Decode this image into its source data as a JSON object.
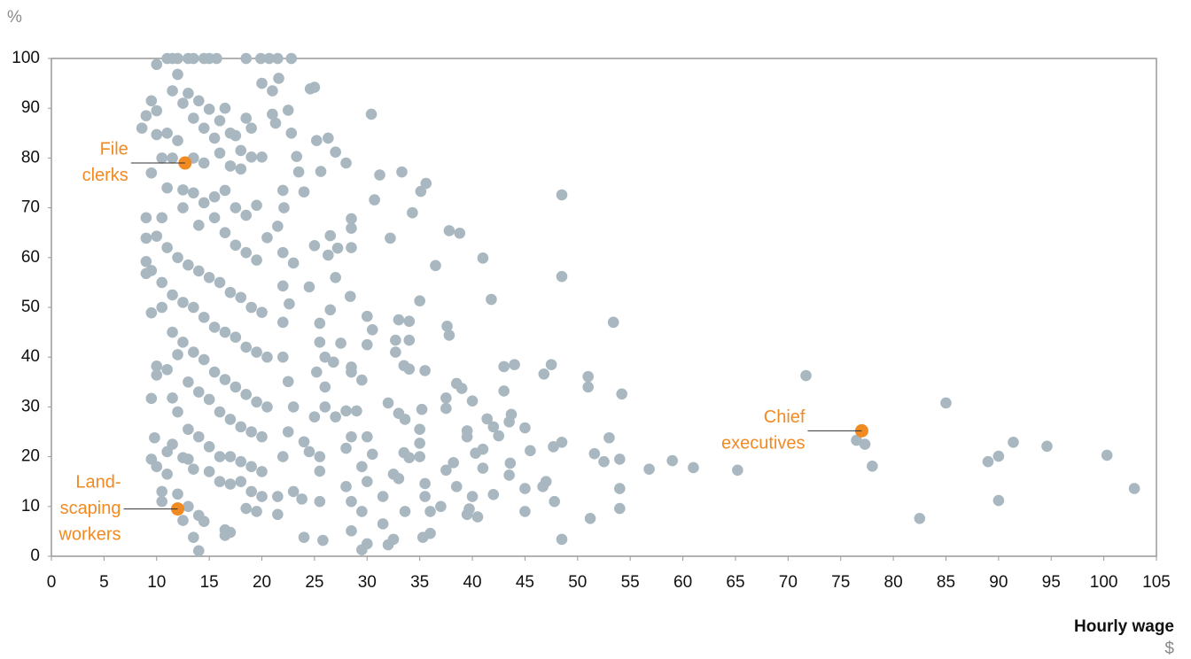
{
  "chart_data": {
    "type": "scatter",
    "y_unit": "%",
    "x_label": "Hourly wage",
    "x_unit": "$",
    "xlim": [
      0,
      105
    ],
    "xticks": [
      0,
      5,
      10,
      15,
      20,
      25,
      30,
      35,
      40,
      45,
      50,
      55,
      60,
      65,
      70,
      75,
      80,
      85,
      90,
      95,
      100,
      105
    ],
    "ylim": [
      0,
      100
    ],
    "yticks": [
      0,
      10,
      20,
      30,
      40,
      50,
      60,
      70,
      80,
      90,
      100
    ],
    "grid": false,
    "series": [
      {
        "color": "#a9b8c0",
        "x": [
          71.7,
          85,
          76.5,
          77.3,
          78,
          82.5,
          89,
          90,
          90,
          91.4,
          94.6,
          100.3,
          102.9,
          65.2,
          61,
          59,
          56.8,
          54,
          54,
          54,
          54.2,
          53.4,
          51,
          51,
          51.6,
          52.5,
          53,
          51.2,
          48.5,
          48.5,
          48.5,
          48.5,
          47.8,
          47.5,
          47.7,
          46.8,
          46.7,
          47,
          45,
          45.5,
          45,
          45,
          44,
          43.7,
          43.5,
          43.6,
          43.5,
          43,
          43,
          42.5,
          42,
          42,
          41.8,
          41.4,
          41,
          41,
          41,
          40.3,
          40.5,
          40,
          40,
          39.7,
          39,
          39.5,
          39.5,
          39.5,
          38.5,
          38.8,
          37.8,
          37.6,
          37.8,
          37.5,
          37.5,
          37.5,
          38.2,
          38.5,
          36.5,
          35.6,
          35.1,
          35,
          34.3,
          34,
          34,
          34,
          35.5,
          35.2,
          35,
          35,
          35,
          34,
          35.5,
          35.5,
          36,
          37,
          36,
          35.3,
          33.3,
          32.2,
          31.2,
          30.4,
          30.7,
          33,
          32.7,
          32.7,
          33.5,
          32,
          33,
          33.6,
          33.5,
          33,
          32.5,
          33.6,
          32.5,
          32,
          31.5,
          31.5,
          30.5,
          30,
          30,
          29.5,
          29,
          30,
          30.5,
          29.5,
          30,
          29.5,
          30,
          29.5,
          28.5,
          28.5,
          28.5,
          28.4,
          28.5,
          28.5,
          28,
          28.5,
          28,
          28,
          28.5,
          28.5,
          28,
          27.5,
          27,
          27.2,
          27,
          26.8,
          27,
          26,
          26,
          26.3,
          26.3,
          26.5,
          26.5,
          25.5,
          25.5,
          26,
          25.2,
          25,
          25.5,
          25.5,
          25.5,
          25.8,
          25,
          24.6,
          25.2,
          25.6,
          25,
          24.5,
          24,
          23.5,
          23.3,
          22.8,
          22.5,
          22.8,
          21.5,
          20.7,
          19.9,
          18.5,
          21.6,
          21,
          20,
          21,
          21.3,
          22,
          22.1,
          21.5,
          22,
          23,
          22.6,
          22,
          22,
          22,
          22.5,
          23,
          22.5,
          22,
          21.5,
          21.5,
          23.8,
          24,
          23,
          24.5,
          24,
          10,
          11,
          11.5,
          12,
          13,
          13.5,
          14.5,
          15,
          15.7,
          12,
          13,
          14,
          15,
          16,
          16.5,
          17,
          17.5,
          18,
          18.5,
          19,
          11.5,
          12.5,
          13.5,
          14.5,
          15.5,
          16,
          17,
          18,
          19,
          20,
          9.5,
          10,
          9,
          8.6,
          10,
          11,
          12,
          13.5,
          10.5,
          11.5,
          14.5,
          9.5,
          11,
          12.5,
          13.5,
          14.5,
          15.5,
          16.5,
          17.5,
          18.5,
          19.5,
          20.5,
          12.5,
          14,
          15.5,
          16.5,
          17.5,
          18.5,
          19.5,
          9,
          10.5,
          10,
          9,
          11,
          12,
          13,
          14,
          15,
          16,
          17,
          18,
          19,
          20,
          9,
          9,
          9.5,
          10.5,
          11.5,
          12.5,
          13.5,
          14.5,
          15.5,
          16.5,
          17.5,
          18.5,
          19.5,
          20.5,
          9.5,
          10.5,
          11.5,
          12.5,
          13.5,
          14.5,
          15.5,
          16.5,
          17.5,
          18.5,
          19.5,
          20.5,
          10,
          10,
          11,
          12,
          13,
          14,
          15,
          16,
          17,
          18,
          19,
          20,
          9.5,
          11.5,
          12,
          13,
          14,
          15,
          16,
          17,
          18,
          19,
          20,
          9.8,
          11,
          11.5,
          12.5,
          13,
          13.5,
          15,
          16,
          17,
          18,
          19,
          20,
          9.5,
          10,
          10.5,
          10.5,
          11,
          12,
          13,
          14,
          14.5,
          16.5,
          16.5,
          17,
          18.5,
          19.5,
          13.5,
          14,
          12.5
        ],
        "values": [
          36.3,
          30.8,
          23.3,
          22.5,
          18.1,
          7.6,
          19,
          20.1,
          11.2,
          22.9,
          22.1,
          20.3,
          13.6,
          17.3,
          17.8,
          19.2,
          17.5,
          19.5,
          13.6,
          9.6,
          32.6,
          47,
          36.1,
          34,
          20.6,
          19,
          23.8,
          7.6,
          72.6,
          56.2,
          22.9,
          3.4,
          11,
          38.5,
          22,
          36.6,
          14,
          15,
          25.8,
          21.2,
          13.6,
          9,
          38.5,
          28.5,
          27,
          18.7,
          16.3,
          38.1,
          33.2,
          24.2,
          12.4,
          26,
          51.6,
          27.6,
          59.9,
          21.5,
          17.7,
          20.7,
          7.9,
          31.2,
          12,
          9.5,
          33.7,
          25.2,
          24,
          8.4,
          34.7,
          64.9,
          65.4,
          46.2,
          44.4,
          31.8,
          29.7,
          17.3,
          18.8,
          14,
          58.4,
          74.9,
          73.3,
          51.3,
          69,
          47.2,
          43.4,
          37.6,
          37.3,
          29.5,
          25.5,
          22.7,
          20,
          19.8,
          14.6,
          12,
          9,
          10,
          4.6,
          3.8,
          77.2,
          63.9,
          76.6,
          88.8,
          71.6,
          47.5,
          43.4,
          41,
          38.3,
          30.8,
          28.7,
          27.5,
          20.8,
          15.6,
          16.5,
          9,
          3.4,
          2.3,
          6.5,
          12,
          45.5,
          48.2,
          42.5,
          35.4,
          29.2,
          24,
          20.5,
          18,
          15,
          9,
          2.5,
          1.3,
          67.8,
          65.9,
          62,
          52.2,
          38,
          37,
          29.2,
          24,
          21.7,
          14,
          11,
          5.1,
          79,
          42.8,
          81.2,
          61.9,
          56,
          39,
          28,
          34,
          30,
          84,
          60.5,
          64.4,
          49.5,
          46.8,
          43,
          40,
          37,
          28,
          20,
          17.1,
          11,
          3.2,
          94.2,
          93.9,
          83.5,
          77.3,
          62.4,
          54.1,
          73.2,
          77.2,
          80.3,
          85,
          89.6,
          100,
          100,
          100,
          100,
          100,
          96,
          93.5,
          95,
          88.8,
          87,
          73.5,
          70,
          66.3,
          61,
          58.9,
          50.7,
          54.3,
          47,
          40,
          35.1,
          30,
          25,
          20,
          12,
          8.4,
          11.5,
          3.8,
          13,
          21,
          23,
          98.8,
          100,
          100,
          100,
          100,
          100,
          100,
          100,
          100,
          96.8,
          93,
          91.5,
          89.8,
          87.5,
          90,
          85,
          84.5,
          81.5,
          88,
          86,
          93.5,
          91,
          88,
          86,
          84,
          81,
          78.4,
          77.8,
          80.2,
          80.2,
          91.5,
          89.5,
          88.5,
          86,
          84.7,
          85,
          83.5,
          80,
          80,
          80,
          79,
          77,
          74,
          73.6,
          73,
          71,
          72.2,
          73.5,
          70,
          68.5,
          70.5,
          64,
          70,
          66.5,
          68,
          65,
          62.5,
          61,
          59.5,
          68,
          68,
          64.3,
          63.9,
          62,
          60,
          58.5,
          57.3,
          56,
          55,
          53,
          52,
          50,
          49,
          59.2,
          56.8,
          57.4,
          55,
          52.5,
          51,
          50,
          48,
          46,
          45,
          44,
          42,
          41,
          40,
          48.9,
          50,
          45,
          43,
          41,
          39.5,
          37,
          35.5,
          34,
          32.5,
          31,
          30,
          38.2,
          36.4,
          37.5,
          40.5,
          35,
          33,
          31.5,
          29,
          27.5,
          26,
          25,
          24,
          31.7,
          31.8,
          29,
          25.5,
          24,
          22,
          20,
          20,
          19,
          18,
          17,
          23.8,
          21,
          22.5,
          19.8,
          19.5,
          17.5,
          17,
          15,
          14.5,
          15,
          13,
          12,
          19.5,
          18,
          13,
          11,
          16.5,
          12.5,
          10,
          8.2,
          7,
          5.3,
          4.2,
          4.8,
          9.6,
          9,
          3.8,
          1.1,
          7.2
        ]
      },
      {
        "color": "#f28a22",
        "x": [
          12.7,
          12,
          77
        ],
        "values": [
          79,
          9.5,
          25.2
        ]
      }
    ],
    "annotations": [
      {
        "lines": [
          "File",
          "clerks"
        ]
      },
      {
        "lines": [
          "Land-",
          "scaping",
          "workers"
        ]
      },
      {
        "lines": [
          "Chief",
          "executives"
        ]
      }
    ]
  }
}
